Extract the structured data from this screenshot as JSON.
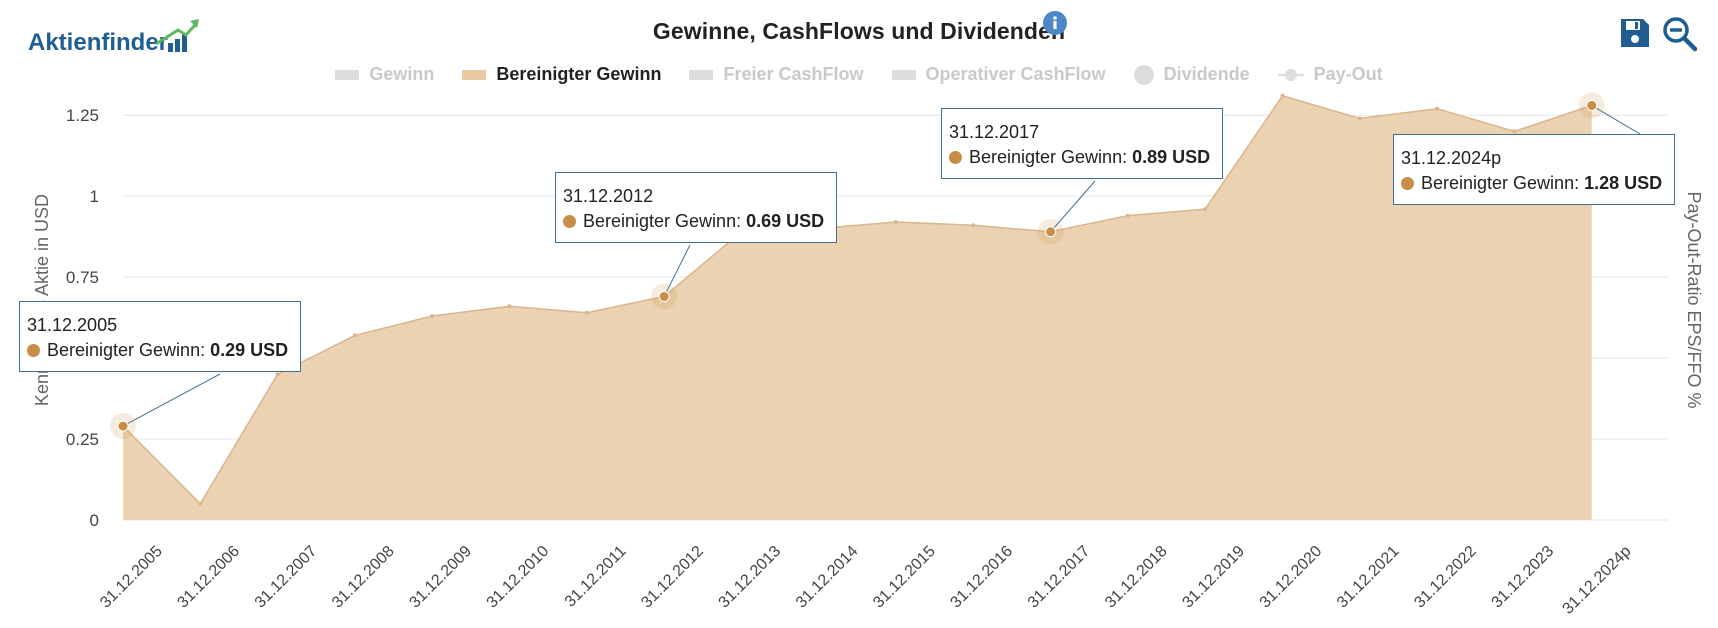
{
  "logo": {
    "text": "Aktienfinder"
  },
  "header": {
    "title": "Gewinne, CashFlows und Dividenden"
  },
  "icons": {
    "info": "info-icon",
    "save": "save-icon",
    "zoom": "zoom-out-icon"
  },
  "colors": {
    "area_fill": "#ebd2b2",
    "area_line": "#d9b68d",
    "marker": "#c68e46",
    "tooltip_border": "#3f6f92",
    "logo_blue": "#1f5d93",
    "logo_green": "#5cb85c"
  },
  "legend": [
    {
      "label": "Gewinn",
      "symbol": "bar",
      "active": false
    },
    {
      "label": "Bereinigter Gewinn",
      "symbol": "bar",
      "active": true
    },
    {
      "label": "Freier CashFlow",
      "symbol": "bar",
      "active": false
    },
    {
      "label": "Operativer CashFlow",
      "symbol": "bar",
      "active": false
    },
    {
      "label": "Dividende",
      "symbol": "dot",
      "active": false
    },
    {
      "label": "Pay-Out",
      "symbol": "linedot",
      "active": false
    }
  ],
  "chart_data": {
    "type": "area",
    "categories": [
      "31.12.2005",
      "31.12.2006",
      "31.12.2007",
      "31.12.2008",
      "31.12.2009",
      "31.12.2010",
      "31.12.2011",
      "31.12.2012",
      "31.12.2013",
      "31.12.2014",
      "31.12.2015",
      "31.12.2016",
      "31.12.2017",
      "31.12.2018",
      "31.12.2019",
      "31.12.2020",
      "31.12.2021",
      "31.12.2022",
      "31.12.2023",
      "31.12.2024p"
    ],
    "series": [
      {
        "name": "Bereinigter Gewinn",
        "values": [
          0.29,
          0.05,
          0.45,
          0.57,
          0.63,
          0.66,
          0.64,
          0.69,
          0.89,
          0.9,
          0.92,
          0.91,
          0.89,
          0.94,
          0.96,
          1.31,
          1.24,
          1.27,
          1.2,
          1.28
        ]
      }
    ],
    "ylabel_left": "Kennzahl pro Aktie in USD",
    "ylabel_right": "Pay-Out-Ratio EPS/FFO %",
    "yticks": [
      "0",
      "0.25",
      "0.5",
      "0.75",
      "1",
      "1.25"
    ],
    "ylim": [
      0,
      1.3
    ],
    "grid": true,
    "legend_position": "top-center",
    "tooltips": [
      {
        "date": "31.12.2005",
        "label": "Bereinigter Gewinn:",
        "value": "0.29 USD"
      },
      {
        "date": "31.12.2012",
        "label": "Bereinigter Gewinn:",
        "value": "0.69 USD"
      },
      {
        "date": "31.12.2017",
        "label": "Bereinigter Gewinn:",
        "value": "0.89 USD"
      },
      {
        "date": "31.12.2024p",
        "label": "Bereinigter Gewinn:",
        "value": "1.28 USD"
      }
    ]
  }
}
